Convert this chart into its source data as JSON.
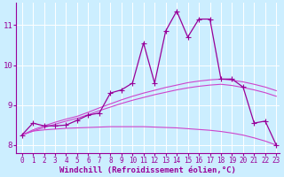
{
  "background_color": "#cceeff",
  "grid_color": "#ffffff",
  "line_color_main": "#990099",
  "line_color_smooth": "#cc44cc",
  "xlabel": "Windchill (Refroidissement éolien,°C)",
  "xlabel_fontsize": 6.5,
  "tick_fontsize": 5.5,
  "xlim": [
    -0.5,
    23.3
  ],
  "ylim": [
    7.8,
    11.55
  ],
  "yticks": [
    8,
    9,
    10,
    11
  ],
  "xticks": [
    0,
    1,
    2,
    3,
    4,
    5,
    6,
    7,
    8,
    9,
    10,
    11,
    12,
    13,
    14,
    15,
    16,
    17,
    18,
    19,
    20,
    21,
    22,
    23
  ],
  "series_main": {
    "x": [
      0,
      1,
      2,
      3,
      4,
      5,
      6,
      7,
      8,
      9,
      10,
      11,
      12,
      13,
      14,
      15,
      16,
      17,
      18,
      19,
      20,
      21,
      22,
      23
    ],
    "y": [
      8.25,
      8.55,
      8.48,
      8.48,
      8.5,
      8.62,
      8.75,
      8.8,
      9.3,
      9.38,
      9.55,
      10.55,
      9.55,
      10.85,
      11.35,
      10.7,
      11.15,
      11.15,
      9.65,
      9.65,
      9.45,
      8.55,
      8.6,
      8.0
    ],
    "marker": "+",
    "markersize": 4.0,
    "linewidth": 0.9
  },
  "series_smooth1": {
    "x": [
      0,
      1,
      2,
      3,
      4,
      5,
      6,
      7,
      8,
      9,
      10,
      11,
      12,
      13,
      14,
      15,
      16,
      17,
      18,
      19,
      20,
      21,
      22,
      23
    ],
    "y": [
      8.25,
      8.38,
      8.48,
      8.57,
      8.65,
      8.72,
      8.82,
      8.93,
      9.03,
      9.13,
      9.22,
      9.3,
      9.37,
      9.44,
      9.5,
      9.56,
      9.6,
      9.63,
      9.65,
      9.62,
      9.58,
      9.52,
      9.45,
      9.36
    ],
    "linewidth": 0.8
  },
  "series_smooth2": {
    "x": [
      0,
      1,
      2,
      3,
      4,
      5,
      6,
      7,
      8,
      9,
      10,
      11,
      12,
      13,
      14,
      15,
      16,
      17,
      18,
      19,
      20,
      21,
      22,
      23
    ],
    "y": [
      8.25,
      8.35,
      8.44,
      8.52,
      8.6,
      8.67,
      8.76,
      8.86,
      8.95,
      9.04,
      9.12,
      9.19,
      9.26,
      9.32,
      9.38,
      9.43,
      9.47,
      9.5,
      9.52,
      9.49,
      9.44,
      9.38,
      9.31,
      9.22
    ],
    "linewidth": 0.8
  },
  "series_flat": {
    "x": [
      0,
      1,
      2,
      3,
      4,
      5,
      6,
      7,
      8,
      9,
      10,
      11,
      12,
      13,
      14,
      15,
      16,
      17,
      18,
      19,
      20,
      21,
      22,
      23
    ],
    "y": [
      8.25,
      8.35,
      8.38,
      8.4,
      8.42,
      8.43,
      8.44,
      8.45,
      8.46,
      8.46,
      8.46,
      8.46,
      8.45,
      8.44,
      8.43,
      8.41,
      8.39,
      8.37,
      8.34,
      8.3,
      8.25,
      8.18,
      8.1,
      8.0
    ],
    "linewidth": 0.8
  }
}
